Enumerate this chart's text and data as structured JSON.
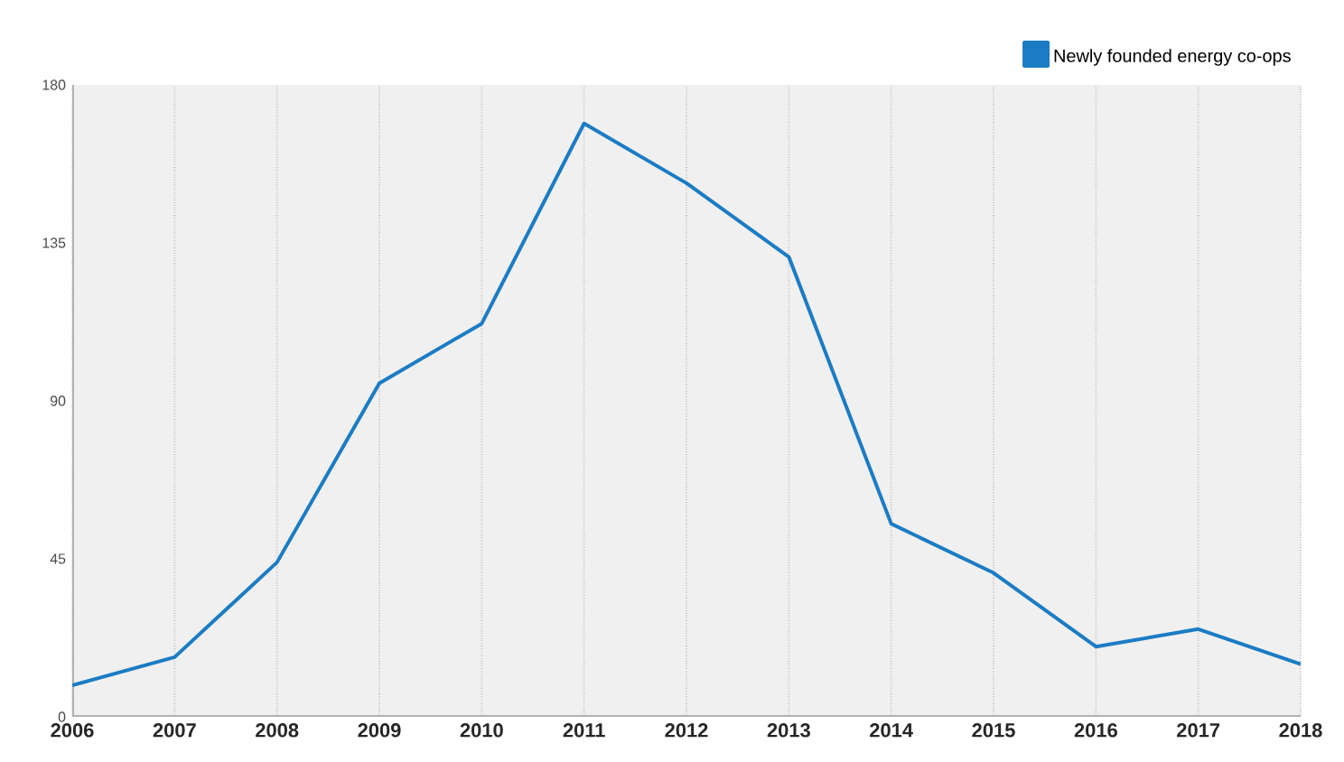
{
  "chart_data": {
    "type": "line",
    "categories": [
      "2006",
      "2007",
      "2008",
      "2009",
      "2010",
      "2011",
      "2012",
      "2013",
      "2014",
      "2015",
      "2016",
      "2017",
      "2018"
    ],
    "series": [
      {
        "name": "Newly founded energy co-ops",
        "color": "#1b7cc4",
        "values": [
          9,
          17,
          44,
          95,
          112,
          169,
          152,
          131,
          55,
          41,
          20,
          25,
          15
        ]
      }
    ],
    "ylim": [
      0,
      180
    ],
    "yticks": [
      0,
      45,
      90,
      135,
      180
    ],
    "grid": "x",
    "legend": "top right",
    "marker": "none",
    "line_style": "solid"
  }
}
